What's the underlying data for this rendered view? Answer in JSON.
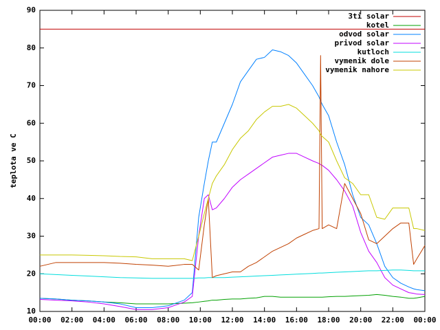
{
  "chart_data": {
    "type": "line",
    "ylabel": "teplota ve C",
    "x": [
      0,
      1,
      2,
      3,
      4,
      5,
      6,
      7,
      8,
      9,
      9.5,
      9.9,
      10.25,
      10.5,
      10.75,
      11,
      11.5,
      12,
      12.5,
      13,
      13.5,
      14,
      14.5,
      15,
      15.5,
      16,
      16.5,
      17,
      17.4,
      17.5,
      17.6,
      18,
      18.5,
      19,
      19.5,
      20,
      20.5,
      21,
      21.5,
      22,
      22.5,
      23,
      23.3,
      23.5,
      24
    ],
    "series": [
      {
        "name": "3ti solar",
        "color": "#c00000",
        "values": [
          85,
          85,
          85,
          85,
          85,
          85,
          85,
          85,
          85,
          85,
          85,
          85,
          85,
          85,
          85,
          85,
          85,
          85,
          85,
          85,
          85,
          85,
          85,
          85,
          85,
          85,
          85,
          85,
          85,
          85,
          85,
          85,
          85,
          85,
          85,
          85,
          85,
          85,
          85,
          85,
          85,
          85,
          85,
          85,
          85
        ]
      },
      {
        "name": "kotel",
        "color": "#00a000",
        "values": [
          13.5,
          13.3,
          13,
          12.8,
          12.5,
          12.3,
          12,
          12,
          12,
          12.2,
          12.3,
          12.5,
          12.7,
          12.8,
          13,
          13,
          13.2,
          13.3,
          13.3,
          13.5,
          13.6,
          14,
          14,
          13.8,
          13.8,
          13.8,
          13.8,
          13.8,
          13.8,
          13.8,
          13.8,
          13.9,
          14,
          14,
          14.1,
          14.2,
          14.3,
          14.5,
          14.3,
          14,
          13.8,
          13.5,
          13.5,
          13.6,
          14
        ]
      },
      {
        "name": "odvod solar",
        "color": "#0080ff",
        "values": [
          13.5,
          13.3,
          13,
          12.8,
          12.5,
          12,
          11,
          11,
          11.5,
          13,
          15,
          35,
          44,
          50,
          55,
          55,
          60,
          65,
          71,
          74,
          77,
          77.5,
          79.5,
          79,
          78,
          76,
          73,
          70,
          67,
          66,
          65,
          62,
          55,
          49,
          41,
          35,
          33,
          28,
          22,
          19,
          17.5,
          16.5,
          16,
          15.8,
          15.5
        ]
      },
      {
        "name": "privod solar",
        "color": "#c000ff",
        "values": [
          13.2,
          13,
          12.8,
          12.5,
          12,
          11.3,
          10.5,
          10.5,
          11,
          12.5,
          14,
          30,
          40,
          41,
          37,
          37.5,
          40,
          43,
          45,
          46.5,
          48,
          49.5,
          51,
          51.5,
          52,
          52,
          51,
          50,
          49.3,
          49,
          48.8,
          47.5,
          45,
          42,
          38,
          31,
          26,
          23,
          19,
          17,
          16,
          15,
          14.8,
          14.6,
          14.5
        ]
      },
      {
        "name": "kutloch",
        "color": "#00dddd",
        "values": [
          20,
          19.8,
          19.6,
          19.4,
          19.2,
          19,
          18.9,
          18.8,
          18.8,
          18.8,
          18.8,
          18.9,
          18.9,
          19,
          19,
          19,
          19,
          19.1,
          19.2,
          19.3,
          19.4,
          19.5,
          19.6,
          19.7,
          19.8,
          19.9,
          20,
          20.1,
          20.2,
          20.2,
          20.2,
          20.3,
          20.4,
          20.5,
          20.6,
          20.7,
          20.8,
          20.8,
          20.9,
          21,
          21,
          20.9,
          20.8,
          20.8,
          20.8
        ]
      },
      {
        "name": "vymenik dole",
        "color": "#c04000",
        "values": [
          22,
          23,
          23,
          23,
          23,
          22.8,
          22.5,
          22.3,
          22,
          22.5,
          22.5,
          21,
          33,
          40,
          19,
          19.5,
          20,
          20.5,
          20.5,
          22,
          23,
          24.5,
          26,
          27,
          28,
          29.5,
          30.5,
          31.5,
          32,
          78,
          32,
          33,
          32,
          44,
          40,
          36,
          29,
          28,
          30,
          32,
          33.5,
          33.5,
          22.5,
          24,
          27.5
        ]
      },
      {
        "name": "vymenik nahore",
        "color": "#c8c800",
        "values": [
          25,
          25,
          25,
          24.9,
          24.8,
          24.6,
          24.5,
          24,
          24,
          24,
          23.5,
          30,
          36,
          40,
          44,
          46,
          49,
          53,
          56,
          58,
          61,
          63,
          64.5,
          64.5,
          65,
          64,
          62,
          60,
          58,
          57,
          56.5,
          55,
          50,
          45.5,
          44,
          41,
          41,
          35,
          34.5,
          37.5,
          37.5,
          37.5,
          32,
          32,
          31.5
        ]
      }
    ],
    "xlim": [
      0,
      24
    ],
    "xticks": [
      {
        "value": 0,
        "label": "00:00"
      },
      {
        "value": 2,
        "label": "02:00"
      },
      {
        "value": 4,
        "label": "04:00"
      },
      {
        "value": 6,
        "label": "06:00"
      },
      {
        "value": 8,
        "label": "08:00"
      },
      {
        "value": 10,
        "label": "10:00"
      },
      {
        "value": 12,
        "label": "12:00"
      },
      {
        "value": 14,
        "label": "14:00"
      },
      {
        "value": 16,
        "label": "16:00"
      },
      {
        "value": 18,
        "label": "18:00"
      },
      {
        "value": 20,
        "label": "20:00"
      },
      {
        "value": 22,
        "label": "22:00"
      },
      {
        "value": 24,
        "label": "00:00"
      }
    ],
    "ylim": [
      10,
      90
    ],
    "yticks": [
      10,
      20,
      30,
      40,
      50,
      60,
      70,
      80,
      90
    ],
    "grid": false,
    "legend": "top-right"
  }
}
